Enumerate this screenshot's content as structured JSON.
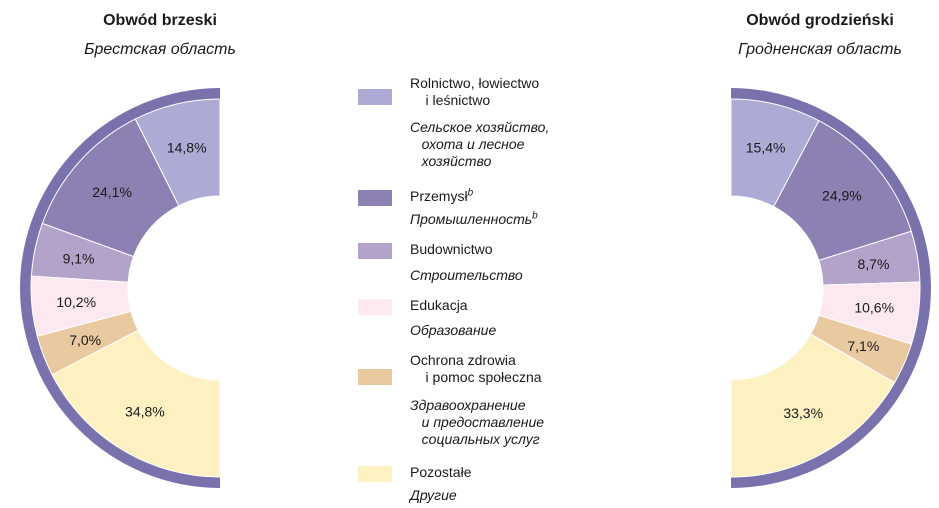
{
  "colors": {
    "rim": "#7a72ad",
    "agriculture": "#aeaad6",
    "industry": "#8d80b2",
    "construction": "#b3a3cb",
    "education": "#fbe8f1",
    "health": "#e8c9a0",
    "other": "#fdf1c2"
  },
  "legend": {
    "items": [
      {
        "key": "agriculture",
        "pl": "Rolnictwo, łowiectwo\n    i leśnictwo",
        "ru": "Сельское хозяйство,\n   охота и лесное\n   хозяйство",
        "sup": ""
      },
      {
        "key": "industry",
        "pl": "Przemysł",
        "ru": "Промышленность",
        "sup": "b"
      },
      {
        "key": "construction",
        "pl": "Budownictwo",
        "ru": "Строительство",
        "sup": ""
      },
      {
        "key": "education",
        "pl": "Edukacja",
        "ru": "Образование",
        "sup": ""
      },
      {
        "key": "health",
        "pl": "Ochrona zdrowia\n    i pomoc społeczna",
        "ru": "Здравоохранение\n   и предоставление\n   социальных услуг",
        "sup": ""
      },
      {
        "key": "other",
        "pl": "Pozostałe",
        "ru": "Другие",
        "sup": ""
      }
    ]
  },
  "chart_data": [
    {
      "type": "pie",
      "title": "Obwód brzeski",
      "subtitle": "Брестская область",
      "categories": [
        "agriculture",
        "industry",
        "construction",
        "education",
        "health",
        "other"
      ],
      "values": [
        14.8,
        24.1,
        9.1,
        10.2,
        7.0,
        34.8
      ],
      "labels": [
        "14,8%",
        "24,1%",
        "9,1%",
        "10,2%",
        "7,0%",
        "34,8%"
      ]
    },
    {
      "type": "pie",
      "title": "Obwód grodzieński",
      "subtitle": "Гродненская область",
      "categories": [
        "agriculture",
        "industry",
        "construction",
        "education",
        "health",
        "other"
      ],
      "values": [
        15.4,
        24.9,
        8.7,
        10.6,
        7.1,
        33.3
      ],
      "labels": [
        "15,4%",
        "24,9%",
        "8,7%",
        "10,6%",
        "7,1%",
        "33,3%"
      ]
    }
  ]
}
